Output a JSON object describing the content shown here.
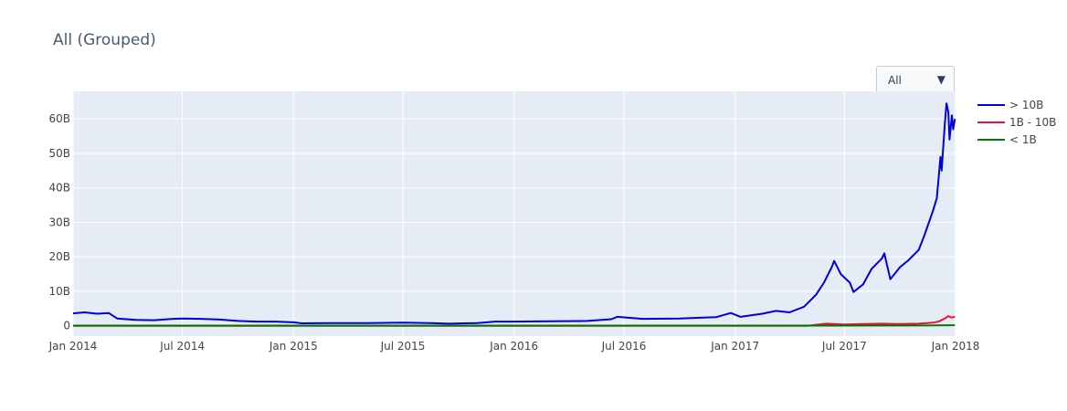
{
  "title": "All (Grouped)",
  "dropdown": {
    "selected": "All"
  },
  "chart_data": {
    "type": "line",
    "title": "All (Grouped)",
    "x_axis": {
      "type": "date",
      "range": [
        "2014-01-01",
        "2018-01-01"
      ],
      "ticks": [
        {
          "date": "2014-01-01",
          "label": "Jan 2014"
        },
        {
          "date": "2014-07-01",
          "label": "Jul 2014"
        },
        {
          "date": "2015-01-01",
          "label": "Jan 2015"
        },
        {
          "date": "2015-07-01",
          "label": "Jul 2015"
        },
        {
          "date": "2016-01-01",
          "label": "Jan 2016"
        },
        {
          "date": "2016-07-01",
          "label": "Jul 2016"
        },
        {
          "date": "2017-01-01",
          "label": "Jan 2017"
        },
        {
          "date": "2017-07-01",
          "label": "Jul 2017"
        },
        {
          "date": "2018-01-01",
          "label": "Jan 2018"
        }
      ]
    },
    "y_axis": {
      "range": [
        -3,
        68
      ],
      "ticks": [
        {
          "value": 0,
          "label": "0"
        },
        {
          "value": 10,
          "label": "10B"
        },
        {
          "value": 20,
          "label": "20B"
        },
        {
          "value": 30,
          "label": "30B"
        },
        {
          "value": 40,
          "label": "40B"
        },
        {
          "value": 50,
          "label": "50B"
        },
        {
          "value": 60,
          "label": "60B"
        }
      ]
    },
    "grid": true,
    "legend": "right",
    "series": [
      {
        "name": "> 10B",
        "color": "#0000dd",
        "points": [
          [
            "2014-01-01",
            3.6
          ],
          [
            "2014-01-20",
            3.9
          ],
          [
            "2014-02-10",
            3.5
          ],
          [
            "2014-03-01",
            3.7
          ],
          [
            "2014-03-15",
            2.1
          ],
          [
            "2014-04-15",
            1.7
          ],
          [
            "2014-05-15",
            1.6
          ],
          [
            "2014-06-15",
            2.0
          ],
          [
            "2014-07-01",
            2.1
          ],
          [
            "2014-08-01",
            2.0
          ],
          [
            "2014-09-01",
            1.8
          ],
          [
            "2014-10-01",
            1.4
          ],
          [
            "2014-11-01",
            1.2
          ],
          [
            "2014-12-01",
            1.2
          ],
          [
            "2015-01-01",
            1.0
          ],
          [
            "2015-01-15",
            0.7
          ],
          [
            "2015-03-01",
            0.8
          ],
          [
            "2015-05-01",
            0.8
          ],
          [
            "2015-07-01",
            0.9
          ],
          [
            "2015-08-15",
            0.8
          ],
          [
            "2015-09-15",
            0.6
          ],
          [
            "2015-11-01",
            0.8
          ],
          [
            "2015-12-01",
            1.2
          ],
          [
            "2016-01-01",
            1.2
          ],
          [
            "2016-03-01",
            1.3
          ],
          [
            "2016-05-01",
            1.4
          ],
          [
            "2016-06-10",
            1.9
          ],
          [
            "2016-06-20",
            2.6
          ],
          [
            "2016-08-01",
            2.0
          ],
          [
            "2016-10-01",
            2.1
          ],
          [
            "2016-12-01",
            2.5
          ],
          [
            "2016-12-25",
            3.7
          ],
          [
            "2017-01-10",
            2.6
          ],
          [
            "2017-02-15",
            3.5
          ],
          [
            "2017-03-10",
            4.3
          ],
          [
            "2017-04-01",
            3.9
          ],
          [
            "2017-04-25",
            5.5
          ],
          [
            "2017-05-15",
            9.0
          ],
          [
            "2017-05-28",
            12.5
          ],
          [
            "2017-06-10",
            17.0
          ],
          [
            "2017-06-14",
            18.8
          ],
          [
            "2017-06-25",
            15.0
          ],
          [
            "2017-07-10",
            12.5
          ],
          [
            "2017-07-16",
            9.8
          ],
          [
            "2017-08-01",
            12.0
          ],
          [
            "2017-08-15",
            16.5
          ],
          [
            "2017-09-01",
            19.5
          ],
          [
            "2017-09-05",
            21.0
          ],
          [
            "2017-09-15",
            13.5
          ],
          [
            "2017-10-01",
            17.0
          ],
          [
            "2017-10-15",
            19.0
          ],
          [
            "2017-11-01",
            22.0
          ],
          [
            "2017-11-10",
            26.0
          ],
          [
            "2017-11-25",
            33.5
          ],
          [
            "2017-12-01",
            37.0
          ],
          [
            "2017-12-07",
            49.0
          ],
          [
            "2017-12-09",
            45.0
          ],
          [
            "2017-12-14",
            58.0
          ],
          [
            "2017-12-17",
            64.5
          ],
          [
            "2017-12-20",
            62.0
          ],
          [
            "2017-12-22",
            54.0
          ],
          [
            "2017-12-26",
            61.0
          ],
          [
            "2017-12-28",
            57.0
          ],
          [
            "2017-12-31",
            60.0
          ]
        ]
      },
      {
        "name": "1B - 10B",
        "color": "#ee1133",
        "points": [
          [
            "2014-01-01",
            0.0
          ],
          [
            "2017-05-01",
            0.0
          ],
          [
            "2017-06-01",
            0.6
          ],
          [
            "2017-07-01",
            0.4
          ],
          [
            "2017-08-01",
            0.5
          ],
          [
            "2017-09-01",
            0.6
          ],
          [
            "2017-10-01",
            0.5
          ],
          [
            "2017-11-01",
            0.6
          ],
          [
            "2017-11-25",
            0.9
          ],
          [
            "2017-12-05",
            1.3
          ],
          [
            "2017-12-15",
            2.2
          ],
          [
            "2017-12-20",
            2.8
          ],
          [
            "2017-12-25",
            2.4
          ],
          [
            "2017-12-31",
            2.6
          ]
        ]
      },
      {
        "name": "< 1B",
        "color": "#007700",
        "points": [
          [
            "2014-01-01",
            0.05
          ],
          [
            "2017-06-01",
            0.05
          ],
          [
            "2017-12-01",
            0.1
          ],
          [
            "2017-12-31",
            0.15
          ]
        ]
      }
    ]
  }
}
